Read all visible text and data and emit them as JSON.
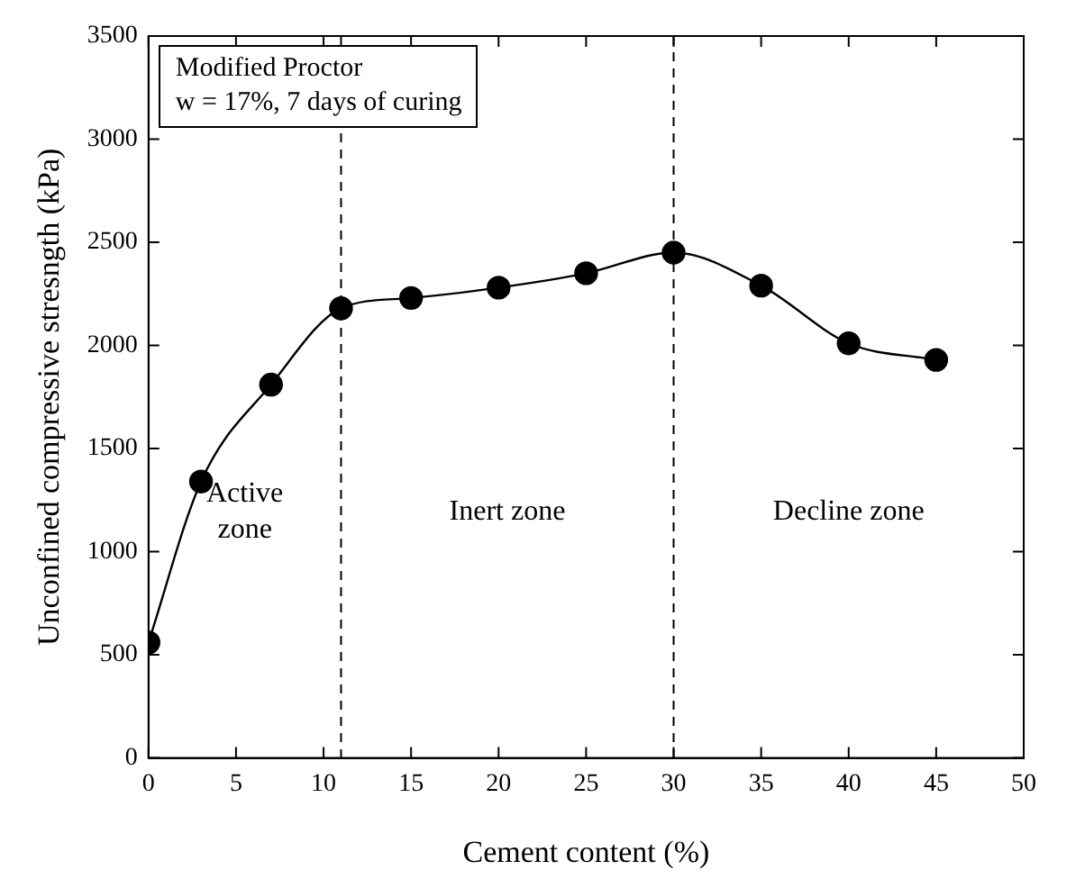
{
  "chart_data": {
    "type": "line",
    "xlabel": "Cement content (%)",
    "ylabel": "Unconfined compressive stresngth (kPa)",
    "x": [
      0,
      3,
      7,
      11,
      15,
      20,
      25,
      30,
      35,
      40,
      45
    ],
    "series": [
      {
        "color": "#000000",
        "values": [
          560,
          1340,
          1810,
          2180,
          2230,
          2280,
          2350,
          2450,
          2290,
          2010,
          1930
        ]
      }
    ],
    "xlim": [
      0,
      50
    ],
    "xticks": [
      0,
      5,
      10,
      15,
      20,
      25,
      30,
      35,
      40,
      45,
      50
    ],
    "ylim": [
      0,
      3500
    ],
    "yticks": [
      0,
      500,
      1000,
      1500,
      2000,
      2500,
      3000,
      3500
    ],
    "grid": false,
    "legend": false,
    "marker": "circle",
    "line_style": "solid",
    "ref_lines": [
      {
        "axis": "x",
        "value": 11,
        "color": "#000000",
        "line_style": "dashed"
      },
      {
        "axis": "x",
        "value": 30,
        "color": "#000000",
        "line_style": "dashed"
      }
    ],
    "annotations": [
      "Modified Proctor\nw = 17%, 7 days of curing",
      "Active\nzone",
      "Inert zone",
      "Decline zone"
    ]
  }
}
